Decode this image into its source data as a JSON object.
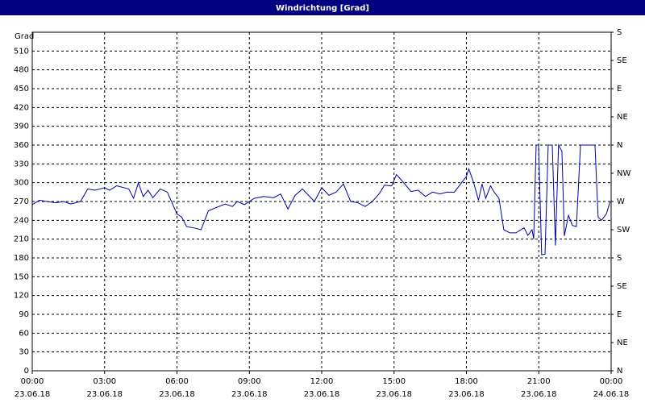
{
  "chart_data": {
    "type": "line",
    "title": "Windrichtung [Grad]",
    "y_label": "Grad",
    "grid": true,
    "xlim": [
      0,
      24
    ],
    "ylim": [
      0,
      540
    ],
    "y2lim": [
      0,
      540
    ],
    "xticks": [
      {
        "value": 0,
        "label": "00:00",
        "date": "23.06.18"
      },
      {
        "value": 3,
        "label": "03:00",
        "date": "23.06.18"
      },
      {
        "value": 6,
        "label": "06:00",
        "date": "23.06.18"
      },
      {
        "value": 9,
        "label": "09:00",
        "date": "23.06.18"
      },
      {
        "value": 12,
        "label": "12:00",
        "date": "23.06.18"
      },
      {
        "value": 15,
        "label": "15:00",
        "date": "23.06.18"
      },
      {
        "value": 18,
        "label": "18:00",
        "date": "23.06.18"
      },
      {
        "value": 21,
        "label": "21:00",
        "date": "23.06.18"
      },
      {
        "value": 24,
        "label": "00:00",
        "date": "24.06.18"
      }
    ],
    "yticks": [
      0,
      30,
      60,
      90,
      120,
      150,
      180,
      210,
      240,
      270,
      300,
      330,
      360,
      390,
      420,
      450,
      480,
      510
    ],
    "y2ticks": [
      {
        "value": 0,
        "label": "N"
      },
      {
        "value": 45,
        "label": "NE"
      },
      {
        "value": 90,
        "label": "E"
      },
      {
        "value": 135,
        "label": "SE"
      },
      {
        "value": 180,
        "label": "S"
      },
      {
        "value": 225,
        "label": "SW"
      },
      {
        "value": 270,
        "label": "W"
      },
      {
        "value": 315,
        "label": "NW"
      },
      {
        "value": 360,
        "label": "N"
      },
      {
        "value": 405,
        "label": "NE"
      },
      {
        "value": 450,
        "label": "E"
      },
      {
        "value": 495,
        "label": "SE"
      },
      {
        "value": 540,
        "label": "S"
      }
    ],
    "series": [
      {
        "name": "Windrichtung",
        "color": "#0000a8",
        "x": [
          0.0,
          0.3,
          0.6,
          1.0,
          1.3,
          1.6,
          2.0,
          2.3,
          2.6,
          3.0,
          3.2,
          3.5,
          4.0,
          4.2,
          4.4,
          4.6,
          4.8,
          5.0,
          5.3,
          5.6,
          6.0,
          6.2,
          6.4,
          6.8,
          7.0,
          7.3,
          7.6,
          8.0,
          8.3,
          8.5,
          8.8,
          9.2,
          9.6,
          10.0,
          10.3,
          10.6,
          10.9,
          11.2,
          11.5,
          11.7,
          12.0,
          12.3,
          12.6,
          12.9,
          13.2,
          13.5,
          13.8,
          14.1,
          14.4,
          14.6,
          14.9,
          15.1,
          15.4,
          15.7,
          16.0,
          16.3,
          16.6,
          16.9,
          17.2,
          17.5,
          17.8,
          18.0,
          18.1,
          18.3,
          18.5,
          18.65,
          18.8,
          19.0,
          19.15,
          19.35,
          19.55,
          19.8,
          20.05,
          20.39,
          20.55,
          20.72,
          20.79,
          20.89,
          20.99,
          21.12,
          21.26,
          21.39,
          21.56,
          21.69,
          21.82,
          21.96,
          22.06,
          22.23,
          22.39,
          22.56,
          22.73,
          22.89,
          23.33,
          23.46,
          23.6,
          23.8,
          23.96
        ],
        "values": [
          265,
          272,
          270,
          268,
          270,
          266,
          270,
          290,
          288,
          292,
          288,
          295,
          290,
          275,
          300,
          278,
          288,
          276,
          290,
          285,
          250,
          245,
          230,
          227,
          225,
          255,
          260,
          266,
          262,
          270,
          265,
          275,
          278,
          276,
          282,
          258,
          280,
          290,
          278,
          270,
          292,
          280,
          285,
          298,
          270,
          268,
          262,
          270,
          283,
          296,
          295,
          313,
          300,
          286,
          288,
          278,
          285,
          282,
          285,
          285,
          300,
          310,
          322,
          300,
          272,
          298,
          275,
          295,
          285,
          275,
          225,
          220,
          220,
          228,
          216,
          225,
          210,
          360,
          360,
          185,
          186,
          360,
          360,
          200,
          360,
          350,
          215,
          248,
          232,
          230,
          360,
          360,
          360,
          245,
          240,
          250,
          270
        ]
      }
    ]
  }
}
